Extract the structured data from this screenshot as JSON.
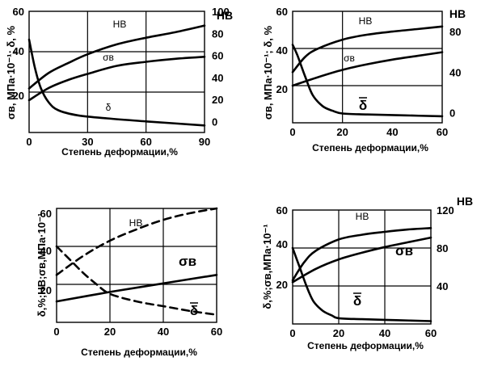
{
  "chart_data": [
    {
      "id": "A",
      "type": "line",
      "xlabel": "Степень деформации,%",
      "ylabel": "σв, МПа·10⁻¹; δ, %",
      "right_label": "НВ",
      "xlim": [
        0,
        90
      ],
      "x_ticks": [
        "0",
        "30",
        "60",
        "90"
      ],
      "ylim_left": [
        0,
        60
      ],
      "y_ticks_left": [
        "20",
        "40",
        "60"
      ],
      "ylim_right": [
        -10,
        100
      ],
      "y_ticks_right": [
        "0",
        "20",
        "40",
        "60",
        "80",
        "100"
      ],
      "series": [
        {
          "name": "НВ",
          "axis": "right",
          "x": [
            0,
            10,
            20,
            30,
            45,
            60,
            75,
            90
          ],
          "y": [
            30,
            44,
            53,
            61,
            70,
            76,
            81,
            87
          ]
        },
        {
          "name": "σв",
          "axis": "left",
          "x": [
            0,
            10,
            20,
            30,
            45,
            60,
            75,
            90
          ],
          "y": [
            16,
            22,
            26,
            29,
            33,
            35,
            36.5,
            37.5
          ]
        },
        {
          "name": "δ",
          "axis": "left",
          "x": [
            0,
            3,
            6,
            10,
            15,
            25,
            40,
            60,
            90
          ],
          "y": [
            46,
            32,
            22,
            15,
            11,
            8.5,
            7,
            5.5,
            3.5
          ]
        }
      ]
    },
    {
      "id": "B",
      "type": "line",
      "xlabel": "Степень деформации,%",
      "ylabel": "σв, МПа·10⁻¹; δ, %",
      "right_label": "НВ",
      "xlim": [
        0,
        60
      ],
      "x_ticks": [
        "0",
        "20",
        "40",
        "60"
      ],
      "ylim_left": [
        0,
        60
      ],
      "y_ticks_left": [
        "20",
        "40",
        "60"
      ],
      "ylim_right": [
        -10,
        100
      ],
      "y_ticks_right": [
        "0",
        "40",
        "80"
      ],
      "series": [
        {
          "name": "НВ",
          "axis": "right",
          "x": [
            0,
            5,
            10,
            20,
            30,
            40,
            50,
            60
          ],
          "y": [
            40,
            55,
            63,
            72,
            77,
            80,
            82.5,
            85
          ]
        },
        {
          "name": "σв",
          "axis": "left",
          "x": [
            0,
            10,
            20,
            30,
            40,
            50,
            60
          ],
          "y": [
            20,
            24.5,
            28.5,
            31.5,
            34,
            36,
            38
          ]
        },
        {
          "name": "δ",
          "axis": "left",
          "x": [
            0,
            2,
            5,
            8,
            12,
            16,
            20,
            30,
            45,
            60
          ],
          "y": [
            42,
            36,
            25,
            15,
            9,
            6.5,
            5,
            4.5,
            4,
            3.5
          ]
        }
      ],
      "annotation": "δ"
    },
    {
      "id": "C",
      "type": "line",
      "xlabel": "Степень деформации,%",
      "ylabel": "δ,%;НВ;σв,МПа·10⁻¹",
      "xlim": [
        0,
        60
      ],
      "x_ticks": [
        "0",
        "20",
        "40",
        "60"
      ],
      "ylim_left": [
        0,
        60
      ],
      "y_ticks_left": [
        "20",
        "40",
        "60"
      ],
      "series": [
        {
          "name": "НВ",
          "style": "dashed",
          "x": [
            0,
            10,
            20,
            30,
            40,
            50,
            60
          ],
          "y": [
            25,
            35,
            43,
            49,
            54,
            57.5,
            60
          ]
        },
        {
          "name": "σв",
          "x": [
            0,
            20,
            40,
            60
          ],
          "y": [
            11,
            16,
            20.5,
            25
          ]
        },
        {
          "name": "δ",
          "style": "dashed",
          "x": [
            0,
            5,
            10,
            15,
            20,
            30,
            40,
            50,
            60
          ],
          "y": [
            40,
            33,
            26,
            20,
            15,
            11,
            8.5,
            6,
            4
          ]
        }
      ],
      "annotation": "δ"
    },
    {
      "id": "D",
      "type": "line",
      "xlabel": "Степень деформации,%",
      "ylabel": "δ,%;σв,МПа·10⁻¹",
      "right_label": "НВ",
      "xlim": [
        0,
        60
      ],
      "x_ticks": [
        "0",
        "20",
        "40",
        "60"
      ],
      "ylim_left": [
        0,
        60
      ],
      "y_ticks_left": [
        "20",
        "40",
        "60"
      ],
      "ylim_right": [
        0,
        120
      ],
      "y_ticks_right": [
        "40",
        "80",
        "120"
      ],
      "series": [
        {
          "name": "НВ",
          "axis": "right",
          "x": [
            0,
            5,
            10,
            20,
            30,
            40,
            50,
            60
          ],
          "y": [
            46,
            65,
            77,
            89,
            94,
            97,
            99.5,
            101
          ]
        },
        {
          "name": "σв",
          "axis": "left",
          "x": [
            0,
            10,
            20,
            30,
            40,
            50,
            60
          ],
          "y": [
            22,
            29,
            34,
            37.5,
            40.5,
            43,
            45.5
          ]
        },
        {
          "name": "δ",
          "axis": "left",
          "x": [
            0,
            3,
            6,
            9,
            13,
            17,
            20,
            30,
            45,
            60
          ],
          "y": [
            40,
            30,
            20,
            12,
            7,
            4.5,
            3,
            2.5,
            2,
            1.5
          ]
        }
      ],
      "annotation": "δ"
    }
  ]
}
